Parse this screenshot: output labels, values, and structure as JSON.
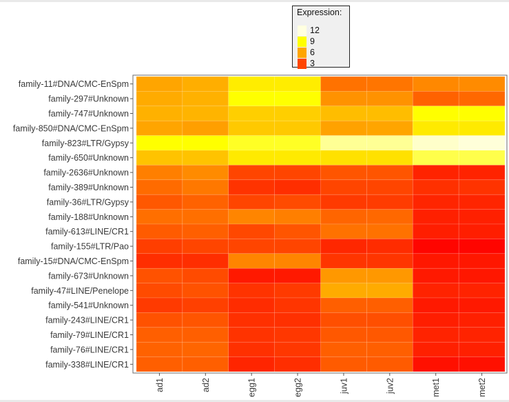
{
  "chart_data": {
    "type": "heatmap",
    "legend": {
      "title": "Expression:",
      "entries": [
        {
          "label": "12",
          "color": "#ffffe0"
        },
        {
          "label": "9",
          "color": "#ffff00"
        },
        {
          "label": "6",
          "color": "#ffa500"
        },
        {
          "label": "3",
          "color": "#ff4500"
        }
      ]
    },
    "colorscale": [
      "#ff0000",
      "#ff4500",
      "#ffa500",
      "#ffff00",
      "#ffffe0"
    ],
    "colorscale_range": [
      1,
      13
    ],
    "columns": [
      "ad1",
      "ad2",
      "egg1",
      "egg2",
      "juv1",
      "juv2",
      "met1",
      "met2"
    ],
    "rows": [
      "family-11#DNA/CMC-EnSpm",
      "family-297#Unknown",
      "family-747#Unknown",
      "family-850#DNA/CMC-EnSpm",
      "family-823#LTR/Gypsy",
      "family-650#Unknown",
      "family-2636#Unknown",
      "family-389#Unknown",
      "family-36#LTR/Gypsy",
      "family-188#Unknown",
      "family-613#LINE/CR1",
      "family-155#LTR/Pao",
      "family-15#DNA/CMC-EnSpm",
      "family-673#Unknown",
      "family-47#LINE/Penelope",
      "family-541#Unknown",
      "family-243#LINE/CR1",
      "family-79#LINE/CR1",
      "family-76#LINE/CR1",
      "family-338#LINE/CR1"
    ],
    "values": [
      [
        7.0,
        7.3,
        9.4,
        9.4,
        5.4,
        5.5,
        6.1,
        6.2
      ],
      [
        7.2,
        7.4,
        10.0,
        10.0,
        6.4,
        6.4,
        4.9,
        5.1
      ],
      [
        7.4,
        7.5,
        8.4,
        8.4,
        7.8,
        7.8,
        10.0,
        10.0
      ],
      [
        7.0,
        6.8,
        8.2,
        8.2,
        6.9,
        7.0,
        9.3,
        9.3
      ],
      [
        10.0,
        10.0,
        10.5,
        10.5,
        12.0,
        12.0,
        12.7,
        12.9
      ],
      [
        8.0,
        8.0,
        9.3,
        9.3,
        9.0,
        9.0,
        11.0,
        11.0
      ],
      [
        5.8,
        6.2,
        4.0,
        4.0,
        4.5,
        4.5,
        2.5,
        2.5
      ],
      [
        5.2,
        5.6,
        3.2,
        3.0,
        4.0,
        4.0,
        3.1,
        3.2
      ],
      [
        4.6,
        4.9,
        4.0,
        4.2,
        3.5,
        3.6,
        2.6,
        2.6
      ],
      [
        5.3,
        5.3,
        6.0,
        5.8,
        5.0,
        5.1,
        2.4,
        2.4
      ],
      [
        4.7,
        4.8,
        4.1,
        4.5,
        5.4,
        5.4,
        2.3,
        2.3
      ],
      [
        3.7,
        4.0,
        4.0,
        4.0,
        2.7,
        2.9,
        1.2,
        1.2
      ],
      [
        3.0,
        3.0,
        6.0,
        6.0,
        3.3,
        3.3,
        2.0,
        2.0
      ],
      [
        4.4,
        4.2,
        2.1,
        2.1,
        6.6,
        6.6,
        2.1,
        2.0
      ],
      [
        4.2,
        4.4,
        3.2,
        3.5,
        7.2,
        7.2,
        2.5,
        2.5
      ],
      [
        3.5,
        3.8,
        2.9,
        3.3,
        4.8,
        4.8,
        2.1,
        2.1
      ],
      [
        4.4,
        4.5,
        3.1,
        3.1,
        4.3,
        4.3,
        2.3,
        2.4
      ],
      [
        4.8,
        4.8,
        3.2,
        3.4,
        4.6,
        4.6,
        2.5,
        2.5
      ],
      [
        4.9,
        5.0,
        3.1,
        3.4,
        4.8,
        4.8,
        2.4,
        2.4
      ],
      [
        4.8,
        4.8,
        2.6,
        3.0,
        4.7,
        4.7,
        1.7,
        1.7
      ]
    ],
    "grid": false
  }
}
